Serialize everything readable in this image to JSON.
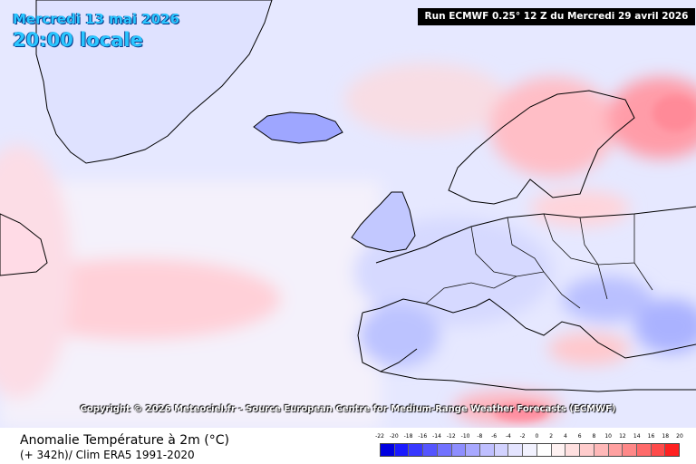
{
  "header": {
    "date_label": "Mercredi 13 mai 2026",
    "time_label": "20:00 locale",
    "run_label": "Run ECMWF 0.25° 12 Z du Mercredi 29 avril 2026"
  },
  "map": {
    "copyright": "Copyright © 2026 Meteociel.fr - Source European Centre for Medium-Range Weather Forecasts (ECMWF)",
    "regions": [
      "Greenland",
      "Iceland",
      "Scandinavia",
      "British Isles",
      "Western Europe",
      "Mediterranean",
      "North Africa",
      "North Atlantic"
    ]
  },
  "footer": {
    "parameter_label": "Anomalie Température à 2m (°C)",
    "lead_label": "(+ 342h)/ Clim ERA5 1991-2020"
  },
  "legend": {
    "labels": [
      "-22",
      "-20",
      "-18",
      "-16",
      "-14",
      "-12",
      "-10",
      "-8",
      "-6",
      "-4",
      "-2",
      "0",
      "2",
      "4",
      "6",
      "8",
      "10",
      "12",
      "14",
      "16",
      "18",
      "20"
    ],
    "colors": [
      "#0000e0",
      "#1a1aff",
      "#3838ff",
      "#5555ff",
      "#7272ff",
      "#8e8eff",
      "#a8a8ff",
      "#bfbfff",
      "#d2d2ff",
      "#e4e4ff",
      "#f2f2ff",
      "#ffffff",
      "#fff2f2",
      "#ffe0e0",
      "#ffcccc",
      "#ffb8b8",
      "#ffa0a0",
      "#ff8888",
      "#ff6a6a",
      "#ff4a4a",
      "#ff2020"
    ]
  },
  "colors": {
    "title_accent": "#29c6ff",
    "ocean_base": "#dfe3ff",
    "warm_anomaly": "#ffc8cc",
    "cold_anomaly": "#b8bfff"
  }
}
